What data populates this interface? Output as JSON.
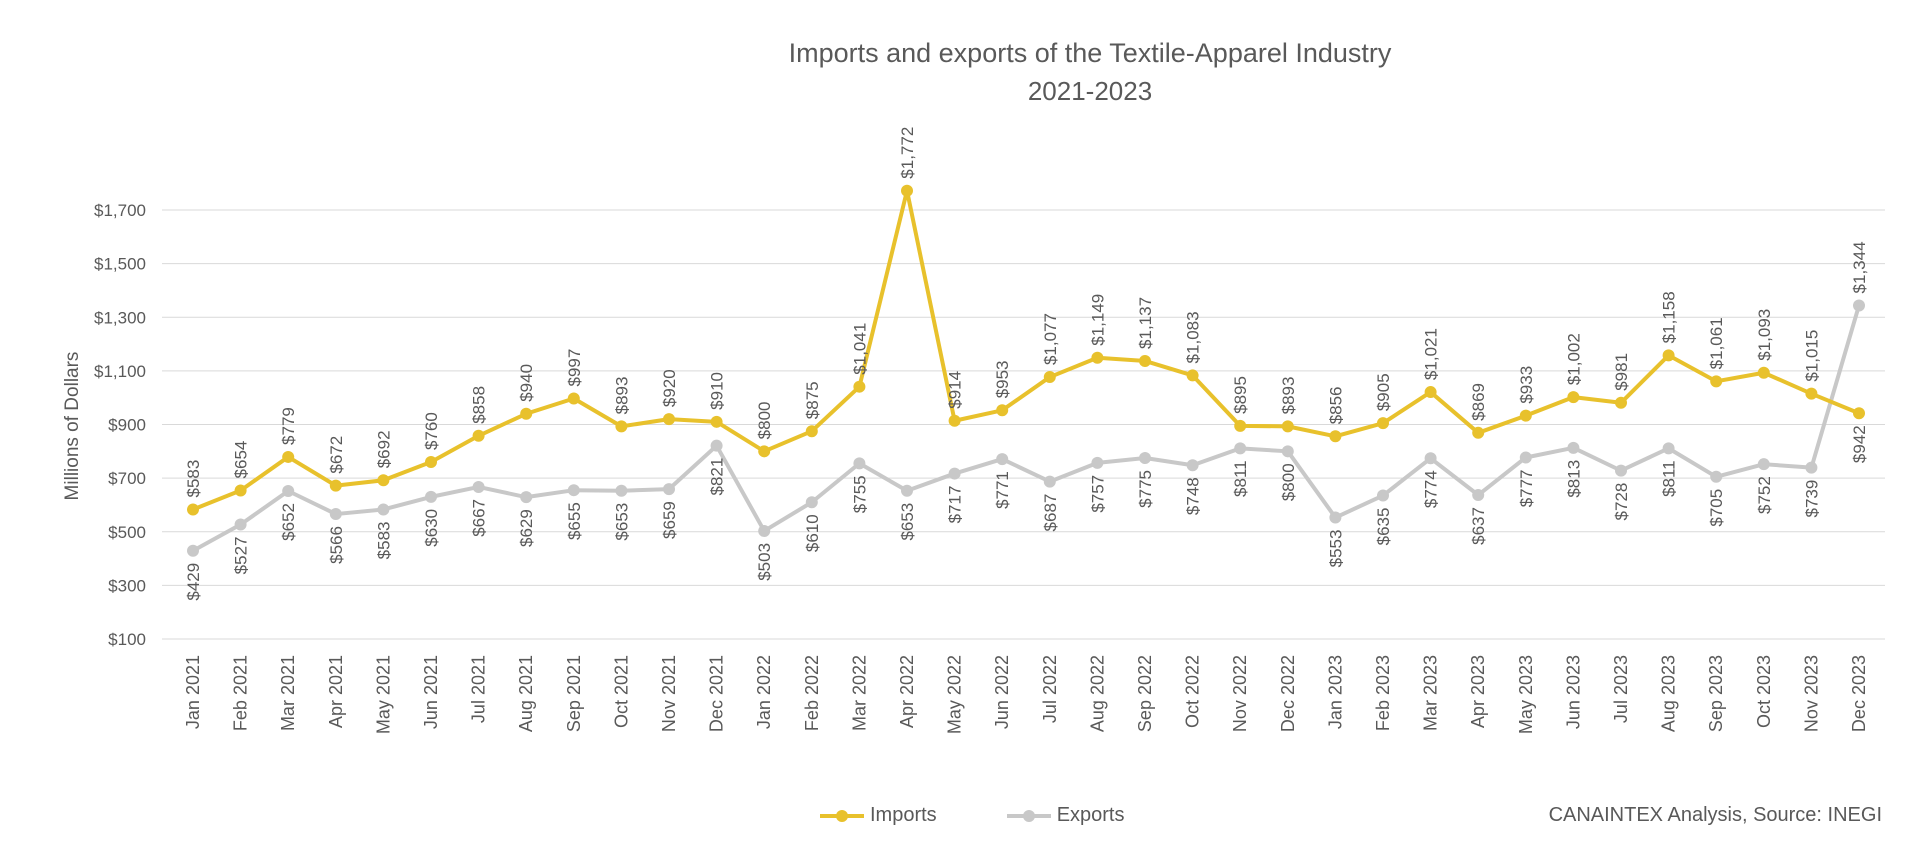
{
  "chart_data": {
    "type": "line",
    "title": "Imports and exports of the Textile-Apparel Industry",
    "subtitle": "2021-2023",
    "ylabel": "Millions of Dollars",
    "xlabel": "",
    "ylim": [
      100,
      1700
    ],
    "yticks": [
      100,
      300,
      500,
      700,
      900,
      1100,
      1300,
      1500,
      1700
    ],
    "ytick_labels": [
      "$100",
      "$300",
      "$500",
      "$700",
      "$900",
      "$1,100",
      "$1,300",
      "$1,500",
      "$1,700"
    ],
    "grid": true,
    "legend_position": "bottom",
    "categories": [
      "Jan 2021",
      "Feb 2021",
      "Mar 2021",
      "Apr 2021",
      "May 2021",
      "Jun 2021",
      "Jul 2021",
      "Aug 2021",
      "Sep 2021",
      "Oct 2021",
      "Nov 2021",
      "Dec 2021",
      "Jan 2022",
      "Feb 2022",
      "Mar 2022",
      "Apr 2022",
      "May 2022",
      "Jun 2022",
      "Jul 2022",
      "Aug 2022",
      "Sep 2022",
      "Oct 2022",
      "Nov 2022",
      "Dec 2022",
      "Jan 2023",
      "Feb 2023",
      "Mar 2023",
      "Apr 2023",
      "May 2023",
      "Jun 2023",
      "Jul 2023",
      "Aug 2023",
      "Sep 2023",
      "Oct 2023",
      "Nov 2023",
      "Dec 2023"
    ],
    "series": [
      {
        "name": "Imports",
        "color": "#E8C12C",
        "values": [
          583,
          654,
          779,
          672,
          692,
          760,
          858,
          940,
          997,
          893,
          920,
          910,
          800,
          875,
          1041,
          1772,
          914,
          953,
          1077,
          1149,
          1137,
          1083,
          895,
          893,
          856,
          905,
          1021,
          869,
          933,
          1002,
          981,
          1158,
          1061,
          1093,
          1015,
          942
        ],
        "labels": [
          "$583",
          "$654",
          "$779",
          "$672",
          "$692",
          "$760",
          "$858",
          "$940",
          "$997",
          "$893",
          "$920",
          "$910",
          "$800",
          "$875",
          "$1,041",
          "$1,772",
          "$914",
          "$953",
          "$1,077",
          "$1,149",
          "$1,137",
          "$1,083",
          "$895",
          "$893",
          "$856",
          "$905",
          "$1,021",
          "$869",
          "$933",
          "$1,002",
          "$981",
          "$1,158",
          "$1,061",
          "$1,093",
          "$1,015",
          "$942"
        ]
      },
      {
        "name": "Exports",
        "color": "#C8C8C8",
        "values": [
          429,
          527,
          652,
          566,
          583,
          630,
          667,
          629,
          655,
          653,
          659,
          821,
          503,
          610,
          755,
          653,
          717,
          771,
          687,
          757,
          775,
          748,
          811,
          800,
          553,
          635,
          774,
          637,
          777,
          813,
          728,
          811,
          705,
          752,
          739,
          1344
        ],
        "labels": [
          "$429",
          "$527",
          "$652",
          "$566",
          "$583",
          "$630",
          "$667",
          "$629",
          "$655",
          "$653",
          "$659",
          "$821",
          "$503",
          "$610",
          "$755",
          "$653",
          "$717",
          "$771",
          "$687",
          "$757",
          "$775",
          "$748",
          "$811",
          "$800",
          "$553",
          "$635",
          "$774",
          "$637",
          "$777",
          "$813",
          "$728",
          "$811",
          "$705",
          "$752",
          "$739",
          "$1,344"
        ]
      }
    ]
  },
  "footer": {
    "credit": "CANAINTEX Analysis, Source: INEGI"
  }
}
